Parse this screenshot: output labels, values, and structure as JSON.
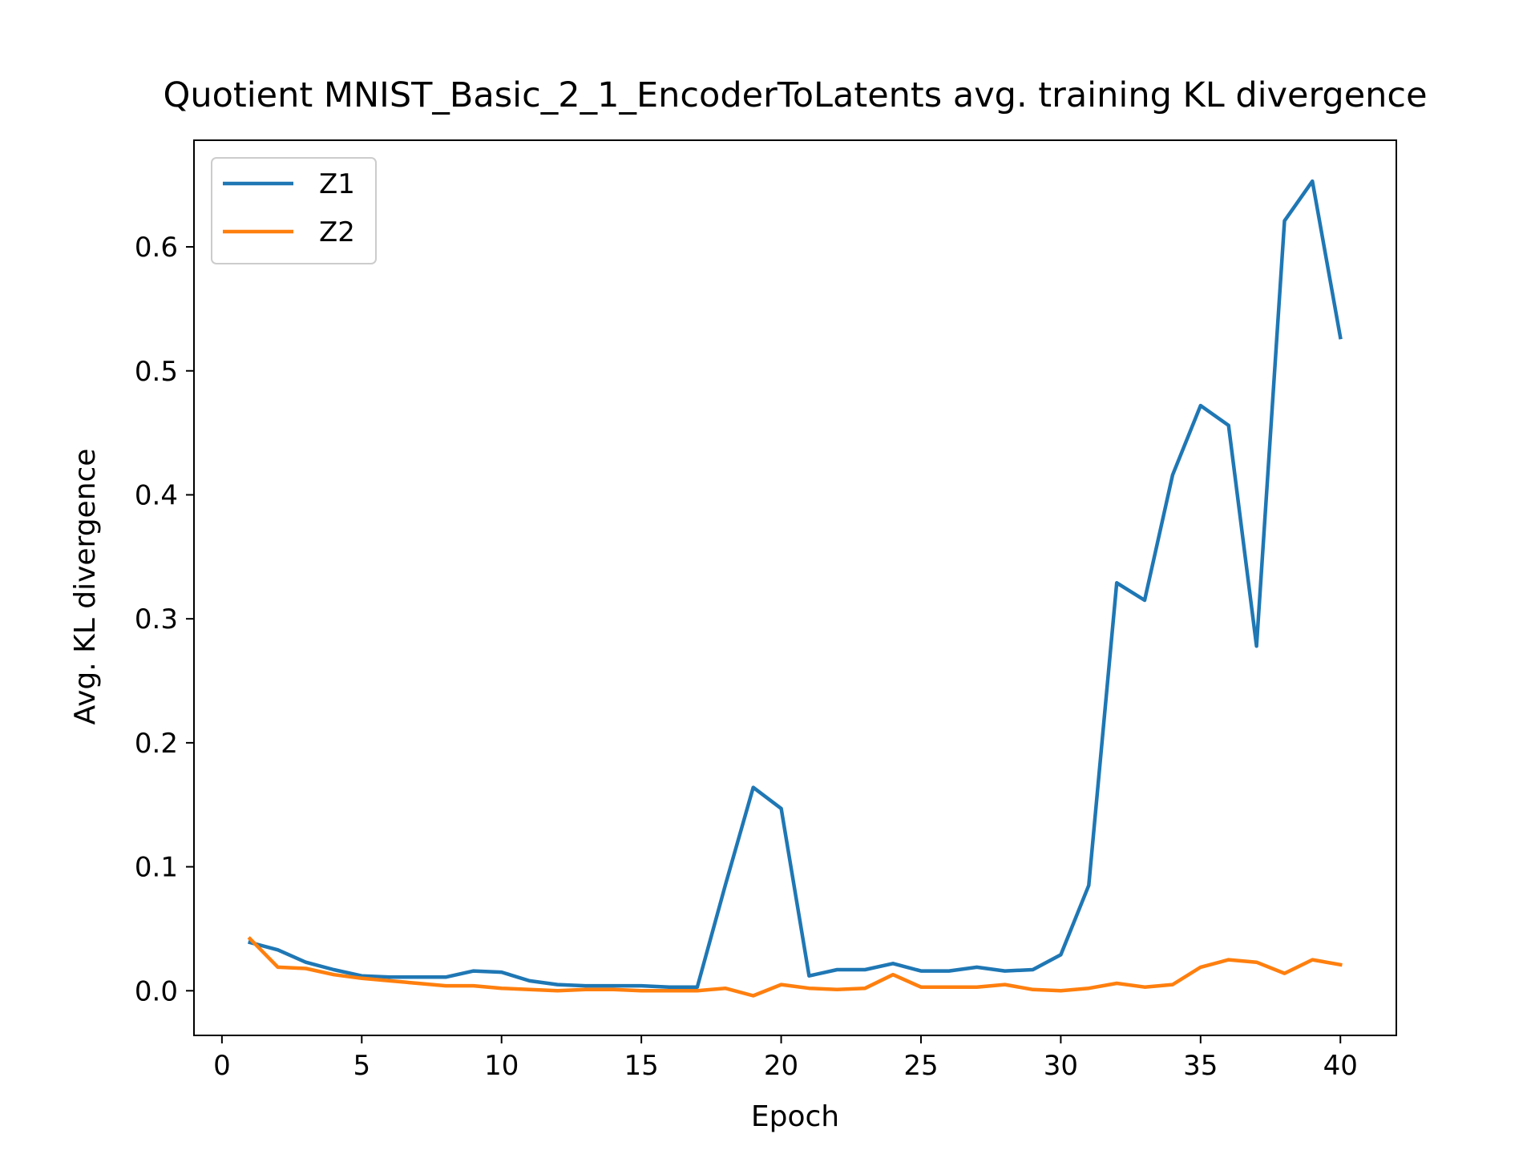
{
  "chart_data": {
    "type": "line",
    "title": "Quotient MNIST_Basic_2_1_EncoderToLatents avg. training KL divergence",
    "xlabel": "Epoch",
    "ylabel": "Avg. KL divergence",
    "xlim": [
      -1,
      42
    ],
    "ylim": [
      -0.036,
      0.686
    ],
    "xticks": [
      0,
      5,
      10,
      15,
      20,
      25,
      30,
      35,
      40
    ],
    "yticks": [
      0.0,
      0.1,
      0.2,
      0.3,
      0.4,
      0.5,
      0.6
    ],
    "ytick_labels": [
      "0.0",
      "0.1",
      "0.2",
      "0.3",
      "0.4",
      "0.5",
      "0.6"
    ],
    "grid": false,
    "legend": "top-left",
    "x": [
      1,
      2,
      3,
      4,
      5,
      6,
      7,
      8,
      9,
      10,
      11,
      12,
      13,
      14,
      15,
      16,
      17,
      18,
      19,
      20,
      21,
      22,
      23,
      24,
      25,
      26,
      27,
      28,
      29,
      30,
      31,
      32,
      33,
      34,
      35,
      36,
      37,
      38,
      39,
      40
    ],
    "series": [
      {
        "name": "Z1",
        "color": "#1f77b4",
        "values": [
          0.039,
          0.033,
          0.023,
          0.017,
          0.012,
          0.011,
          0.011,
          0.011,
          0.016,
          0.015,
          0.008,
          0.005,
          0.004,
          0.004,
          0.004,
          0.003,
          0.003,
          0.085,
          0.164,
          0.147,
          0.012,
          0.017,
          0.017,
          0.022,
          0.016,
          0.016,
          0.019,
          0.016,
          0.017,
          0.029,
          0.085,
          0.329,
          0.315,
          0.416,
          0.472,
          0.456,
          0.278,
          0.621,
          0.653,
          0.527
        ]
      },
      {
        "name": "Z2",
        "color": "#ff7f0e",
        "values": [
          0.042,
          0.019,
          0.018,
          0.013,
          0.01,
          0.008,
          0.006,
          0.004,
          0.004,
          0.002,
          0.001,
          0.0,
          0.001,
          0.001,
          0.0,
          0.0,
          0.0,
          0.002,
          -0.004,
          0.005,
          0.002,
          0.001,
          0.002,
          0.013,
          0.003,
          0.003,
          0.003,
          0.005,
          0.001,
          0.0,
          0.002,
          0.006,
          0.003,
          0.005,
          0.019,
          0.025,
          0.023,
          0.014,
          0.025,
          0.021
        ]
      }
    ]
  }
}
